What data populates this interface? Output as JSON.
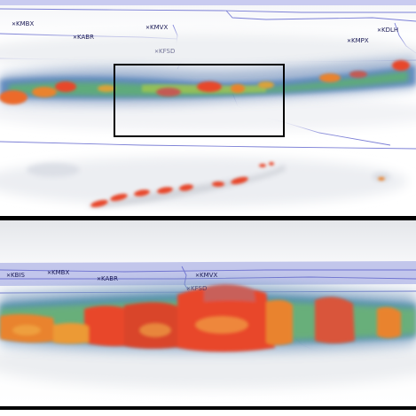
{
  "colors": {
    "boundary": "#7b7fd6",
    "fog": "#e6e8ee",
    "low_reflectivity": "#4f7fb8",
    "mid_reflectivity": "#5fb36a",
    "high_reflectivity": "#e8472a",
    "inset_box": "#000000"
  },
  "top_panel": {
    "stations": [
      "KMBX",
      "KABR",
      "KMVX",
      "KFSD",
      "KDLH",
      "KMPX"
    ]
  },
  "bottom_panel": {
    "stations": [
      "KBIS",
      "KMBX",
      "KABR",
      "KMVX",
      "KFSD"
    ]
  }
}
